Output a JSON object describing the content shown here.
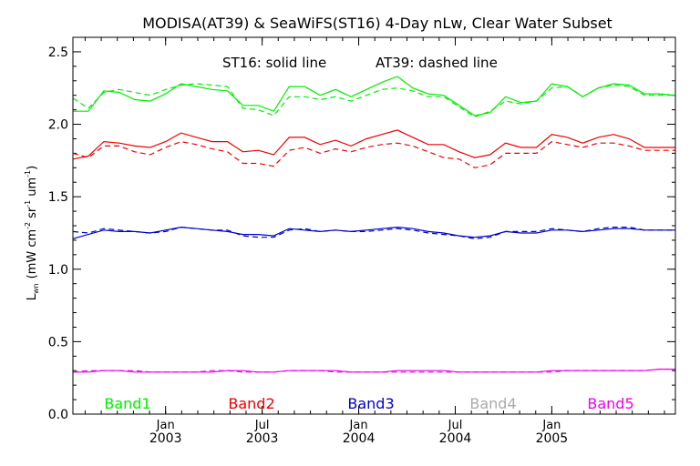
{
  "chart_data": {
    "type": "line",
    "title": "MODISA(AT39) & SeaWiFS(ST16) 4-Day nLw, Clear Water Subset",
    "annotation_solid": "ST16: solid line",
    "annotation_dashed": "AT39: dashed line",
    "ylabel": {
      "main": "L",
      "sub": "wn",
      "units_open": "(mW cm",
      "exp1": "-2",
      "sr": "sr",
      "exp2": "-1",
      "um": "um",
      "exp3": "-1",
      "close": ")"
    },
    "xlim": [
      2002.52,
      2005.64
    ],
    "ylim": [
      0.0,
      2.6
    ],
    "yticks": [
      {
        "value": 0.0,
        "label": "0.0"
      },
      {
        "value": 0.5,
        "label": "0.5"
      },
      {
        "value": 1.0,
        "label": "1.0"
      },
      {
        "value": 1.5,
        "label": "1.5"
      },
      {
        "value": 2.0,
        "label": "2.0"
      },
      {
        "value": 2.5,
        "label": "2.5"
      }
    ],
    "xticks": [
      {
        "value": 2003.0,
        "month": "Jan",
        "year": "2003"
      },
      {
        "value": 2003.5,
        "month": "Jul",
        "year": "2003"
      },
      {
        "value": 2004.0,
        "month": "Jan",
        "year": "2004"
      },
      {
        "value": 2004.5,
        "month": "Jul",
        "year": "2004"
      },
      {
        "value": 2005.0,
        "month": "Jan",
        "year": "2005"
      }
    ],
    "legend": [
      {
        "label": "Band1",
        "color": "#00ee00"
      },
      {
        "label": "Band2",
        "color": "#ee0000"
      },
      {
        "label": "Band3",
        "color": "#0000cc"
      },
      {
        "label": "Band4",
        "color": "#aaaaaa"
      },
      {
        "label": "Band5",
        "color": "#ee00ee"
      }
    ],
    "x": [
      2002.52,
      2002.6,
      2002.68,
      2002.76,
      2002.84,
      2002.92,
      2003.0,
      2003.08,
      2003.16,
      2003.24,
      2003.32,
      2003.4,
      2003.48,
      2003.56,
      2003.64,
      2003.72,
      2003.8,
      2003.88,
      2003.96,
      2004.04,
      2004.12,
      2004.2,
      2004.28,
      2004.36,
      2004.44,
      2004.52,
      2004.6,
      2004.68,
      2004.76,
      2004.84,
      2004.92,
      2005.0,
      2005.08,
      2005.16,
      2005.24,
      2005.32,
      2005.4,
      2005.48,
      2005.56,
      2005.64
    ],
    "series": [
      {
        "band": "Band1",
        "style": "solid",
        "color": "#00ee00",
        "values": [
          2.09,
          2.09,
          2.23,
          2.22,
          2.17,
          2.16,
          2.21,
          2.28,
          2.26,
          2.24,
          2.23,
          2.13,
          2.13,
          2.09,
          2.26,
          2.26,
          2.2,
          2.24,
          2.19,
          2.24,
          2.29,
          2.33,
          2.25,
          2.21,
          2.2,
          2.13,
          2.06,
          2.08,
          2.19,
          2.15,
          2.16,
          2.28,
          2.26,
          2.19,
          2.25,
          2.28,
          2.27,
          2.21,
          2.21,
          2.2
        ]
      },
      {
        "band": "Band1",
        "style": "dashed",
        "color": "#00ee00",
        "values": [
          2.18,
          2.11,
          2.22,
          2.24,
          2.22,
          2.2,
          2.24,
          2.27,
          2.28,
          2.27,
          2.26,
          2.11,
          2.1,
          2.06,
          2.19,
          2.19,
          2.17,
          2.19,
          2.16,
          2.2,
          2.24,
          2.25,
          2.23,
          2.19,
          2.19,
          2.12,
          2.05,
          2.09,
          2.16,
          2.14,
          2.16,
          2.25,
          2.26,
          2.19,
          2.25,
          2.27,
          2.26,
          2.2,
          2.2,
          2.2
        ]
      },
      {
        "band": "Band2",
        "style": "solid",
        "color": "#ee0000",
        "values": [
          1.76,
          1.78,
          1.88,
          1.87,
          1.85,
          1.84,
          1.88,
          1.94,
          1.91,
          1.88,
          1.88,
          1.81,
          1.82,
          1.79,
          1.91,
          1.91,
          1.86,
          1.89,
          1.85,
          1.9,
          1.93,
          1.96,
          1.91,
          1.86,
          1.86,
          1.81,
          1.77,
          1.79,
          1.87,
          1.84,
          1.84,
          1.93,
          1.91,
          1.87,
          1.91,
          1.93,
          1.9,
          1.84,
          1.84,
          1.84
        ]
      },
      {
        "band": "Band2",
        "style": "dashed",
        "color": "#ee0000",
        "values": [
          1.8,
          1.77,
          1.85,
          1.85,
          1.81,
          1.79,
          1.84,
          1.88,
          1.86,
          1.83,
          1.81,
          1.73,
          1.73,
          1.71,
          1.82,
          1.84,
          1.8,
          1.83,
          1.81,
          1.84,
          1.86,
          1.87,
          1.85,
          1.81,
          1.77,
          1.76,
          1.7,
          1.72,
          1.8,
          1.8,
          1.8,
          1.88,
          1.86,
          1.84,
          1.87,
          1.87,
          1.85,
          1.82,
          1.82,
          1.82
        ]
      },
      {
        "band": "Band3",
        "style": "solid",
        "color": "#0000cc",
        "values": [
          1.21,
          1.24,
          1.27,
          1.26,
          1.26,
          1.25,
          1.27,
          1.29,
          1.28,
          1.27,
          1.26,
          1.24,
          1.24,
          1.23,
          1.28,
          1.27,
          1.26,
          1.27,
          1.26,
          1.27,
          1.28,
          1.29,
          1.28,
          1.26,
          1.25,
          1.23,
          1.22,
          1.23,
          1.26,
          1.25,
          1.25,
          1.27,
          1.27,
          1.26,
          1.27,
          1.28,
          1.28,
          1.27,
          1.27,
          1.27
        ]
      },
      {
        "band": "Band3",
        "style": "dashed",
        "color": "#0000cc",
        "values": [
          1.26,
          1.25,
          1.28,
          1.27,
          1.26,
          1.25,
          1.26,
          1.29,
          1.28,
          1.27,
          1.27,
          1.23,
          1.22,
          1.22,
          1.27,
          1.28,
          1.26,
          1.27,
          1.26,
          1.26,
          1.27,
          1.28,
          1.27,
          1.25,
          1.24,
          1.23,
          1.21,
          1.22,
          1.26,
          1.26,
          1.26,
          1.28,
          1.27,
          1.26,
          1.28,
          1.29,
          1.29,
          1.27,
          1.27,
          1.27
        ]
      },
      {
        "band": "Band5",
        "style": "solid",
        "color": "#ee00ee",
        "values": [
          0.29,
          0.29,
          0.3,
          0.3,
          0.29,
          0.29,
          0.29,
          0.29,
          0.29,
          0.29,
          0.3,
          0.3,
          0.29,
          0.29,
          0.3,
          0.3,
          0.3,
          0.3,
          0.29,
          0.29,
          0.29,
          0.3,
          0.3,
          0.3,
          0.3,
          0.29,
          0.29,
          0.29,
          0.29,
          0.29,
          0.29,
          0.3,
          0.3,
          0.3,
          0.3,
          0.3,
          0.3,
          0.3,
          0.31,
          0.31
        ]
      },
      {
        "band": "Band5",
        "style": "dashed",
        "color": "#ee00ee",
        "values": [
          0.29,
          0.3,
          0.3,
          0.3,
          0.3,
          0.29,
          0.29,
          0.29,
          0.29,
          0.3,
          0.3,
          0.29,
          0.29,
          0.29,
          0.3,
          0.3,
          0.3,
          0.29,
          0.29,
          0.29,
          0.29,
          0.29,
          0.29,
          0.29,
          0.29,
          0.29,
          0.29,
          0.29,
          0.29,
          0.29,
          0.29,
          0.29,
          0.3,
          0.3,
          0.3,
          0.3,
          0.3,
          0.3,
          0.31,
          0.31
        ]
      }
    ]
  }
}
